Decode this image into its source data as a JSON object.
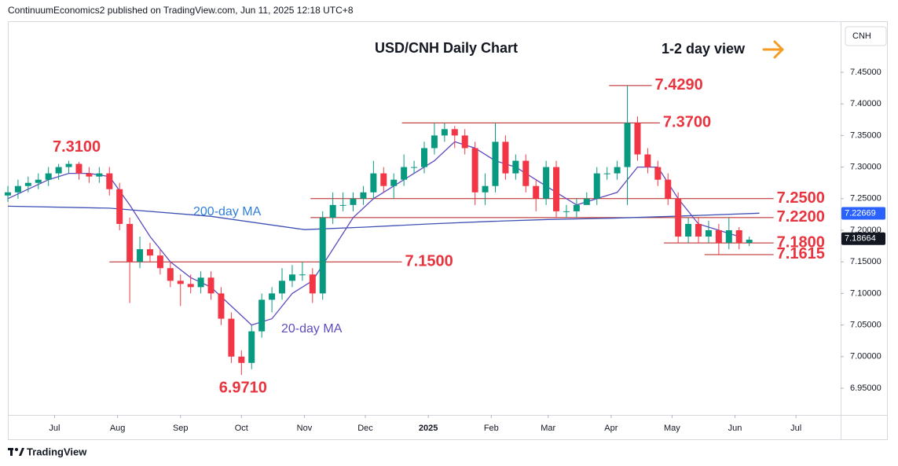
{
  "header": "ContinuumEconomics2 published on TradingView.com, Jun 11, 2025 12:18 UTC+8",
  "footer": "TradingView",
  "chart_data": {
    "type": "candlestick",
    "title": "USD/CNH Daily Chart",
    "subtitle": "1-2 day view",
    "axis_label": "CNH",
    "grid": false,
    "up_color": "#089981",
    "down_color": "#f23645",
    "xlim": [
      0,
      410
    ],
    "xticks": [
      {
        "value": 23,
        "label": "Jul"
      },
      {
        "value": 54,
        "label": "Aug"
      },
      {
        "value": 85,
        "label": "Sep"
      },
      {
        "value": 115,
        "label": "Oct"
      },
      {
        "value": 146,
        "label": "Nov"
      },
      {
        "value": 176,
        "label": "Dec"
      },
      {
        "value": 207,
        "label": "2025"
      },
      {
        "value": 238,
        "label": "Feb"
      },
      {
        "value": 266,
        "label": "Mar"
      },
      {
        "value": 297,
        "label": "Apr"
      },
      {
        "value": 327,
        "label": "May"
      },
      {
        "value": 358,
        "label": "Jun"
      },
      {
        "value": 388,
        "label": "Jul"
      }
    ],
    "ylim": [
      6.9077,
      7.5296
    ],
    "yticks": [
      {
        "value": 6.95,
        "label": "6.95000"
      },
      {
        "value": 7.0,
        "label": "7.00000"
      },
      {
        "value": 7.05,
        "label": "7.05000"
      },
      {
        "value": 7.1,
        "label": "7.10000"
      },
      {
        "value": 7.15,
        "label": "7.15000"
      },
      {
        "value": 7.2,
        "label": "7.20000"
      },
      {
        "value": 7.25,
        "label": "7.25000"
      },
      {
        "value": 7.3,
        "label": "7.30000"
      },
      {
        "value": 7.35,
        "label": "7.35000"
      },
      {
        "value": 7.4,
        "label": "7.40000"
      },
      {
        "value": 7.45,
        "label": "7.45000"
      }
    ],
    "x": [
      0,
      5,
      10,
      15,
      20,
      25,
      30,
      35,
      40,
      45,
      50,
      55,
      60,
      65,
      70,
      75,
      80,
      85,
      90,
      95,
      100,
      105,
      110,
      115,
      120,
      125,
      130,
      135,
      140,
      145,
      150,
      155,
      160,
      165,
      170,
      175,
      180,
      185,
      190,
      195,
      200,
      205,
      210,
      215,
      220,
      225,
      230,
      235,
      240,
      245,
      250,
      255,
      260,
      265,
      270,
      275,
      280,
      285,
      290,
      295,
      300,
      305,
      310,
      315,
      320,
      325,
      330,
      335,
      340,
      345,
      350,
      355,
      360,
      365
    ],
    "open": [
      7.255,
      7.26,
      7.27,
      7.275,
      7.28,
      7.29,
      7.3,
      7.305,
      7.29,
      7.285,
      7.29,
      7.265,
      7.21,
      7.15,
      7.17,
      7.16,
      7.14,
      7.12,
      7.115,
      7.11,
      7.125,
      7.1,
      7.06,
      7.0,
      6.99,
      7.04,
      7.09,
      7.1,
      7.12,
      7.13,
      7.13,
      7.1,
      7.22,
      7.24,
      7.24,
      7.25,
      7.26,
      7.29,
      7.27,
      7.28,
      7.3,
      7.3,
      7.33,
      7.35,
      7.36,
      7.35,
      7.33,
      7.26,
      7.27,
      7.34,
      7.29,
      7.31,
      7.27,
      7.25,
      7.3,
      7.23,
      7.23,
      7.24,
      7.25,
      7.29,
      7.29,
      7.3,
      7.37,
      7.32,
      7.3,
      7.28,
      7.25,
      7.19,
      7.21,
      7.19,
      7.2,
      7.18,
      7.2,
      7.18
    ],
    "high": [
      7.27,
      7.28,
      7.285,
      7.29,
      7.3,
      7.305,
      7.31,
      7.308,
      7.3,
      7.3,
      7.3,
      7.275,
      7.22,
      7.19,
      7.18,
      7.17,
      7.15,
      7.13,
      7.13,
      7.135,
      7.135,
      7.11,
      7.07,
      7.01,
      7.05,
      7.1,
      7.11,
      7.14,
      7.145,
      7.15,
      7.14,
      7.23,
      7.26,
      7.26,
      7.26,
      7.27,
      7.31,
      7.3,
      7.29,
      7.32,
      7.31,
      7.34,
      7.37,
      7.37,
      7.365,
      7.36,
      7.34,
      7.29,
      7.37,
      7.35,
      7.32,
      7.32,
      7.28,
      7.31,
      7.31,
      7.24,
      7.25,
      7.26,
      7.3,
      7.3,
      7.31,
      7.429,
      7.38,
      7.33,
      7.31,
      7.29,
      7.26,
      7.22,
      7.22,
      7.215,
      7.21,
      7.22,
      7.205,
      7.19
    ],
    "low": [
      7.245,
      7.25,
      7.26,
      7.265,
      7.27,
      7.28,
      7.29,
      7.28,
      7.275,
      7.275,
      7.255,
      7.2,
      7.085,
      7.14,
      7.15,
      7.13,
      7.11,
      7.08,
      7.1,
      7.1,
      7.09,
      7.05,
      6.99,
      6.971,
      6.98,
      7.03,
      7.07,
      7.09,
      7.11,
      7.12,
      7.085,
      7.09,
      7.21,
      7.23,
      7.23,
      7.24,
      7.25,
      7.26,
      7.25,
      7.27,
      7.29,
      7.29,
      7.32,
      7.34,
      7.33,
      7.32,
      7.24,
      7.24,
      7.26,
      7.28,
      7.28,
      7.26,
      7.23,
      7.24,
      7.22,
      7.22,
      7.22,
      7.24,
      7.24,
      7.28,
      7.28,
      7.24,
      7.31,
      7.29,
      7.27,
      7.24,
      7.18,
      7.18,
      7.18,
      7.18,
      7.1615,
      7.17,
      7.17,
      7.175
    ],
    "close": [
      7.26,
      7.27,
      7.275,
      7.28,
      7.29,
      7.3,
      7.305,
      7.29,
      7.285,
      7.29,
      7.265,
      7.21,
      7.15,
      7.17,
      7.16,
      7.14,
      7.12,
      7.115,
      7.11,
      7.125,
      7.1,
      7.06,
      7.0,
      6.99,
      7.04,
      7.09,
      7.1,
      7.12,
      7.13,
      7.13,
      7.1,
      7.22,
      7.24,
      7.24,
      7.25,
      7.26,
      7.29,
      7.27,
      7.28,
      7.3,
      7.3,
      7.33,
      7.35,
      7.36,
      7.35,
      7.33,
      7.26,
      7.27,
      7.34,
      7.29,
      7.31,
      7.27,
      7.25,
      7.3,
      7.23,
      7.23,
      7.24,
      7.25,
      7.29,
      7.29,
      7.3,
      7.37,
      7.32,
      7.3,
      7.28,
      7.25,
      7.19,
      7.21,
      7.19,
      7.2,
      7.18,
      7.2,
      7.18,
      7.185
    ],
    "series": [
      {
        "name": "200-day MA",
        "color": "#3f51b5",
        "x": [
          0,
          50,
          100,
          146,
          176,
          207,
          238,
          266,
          297,
          327,
          370
        ],
        "values": [
          7.238,
          7.235,
          7.222,
          7.201,
          7.205,
          7.21,
          7.214,
          7.217,
          7.219,
          7.222,
          7.227
        ]
      },
      {
        "name": "20-day MA",
        "color": "#5e4bbf",
        "x": [
          0,
          10,
          20,
          30,
          40,
          50,
          60,
          70,
          80,
          90,
          100,
          110,
          120,
          130,
          140,
          150,
          160,
          170,
          180,
          190,
          200,
          210,
          220,
          230,
          240,
          250,
          260,
          270,
          280,
          290,
          300,
          310,
          320,
          330,
          340,
          350,
          360
        ],
        "values": [
          7.25,
          7.265,
          7.28,
          7.29,
          7.29,
          7.285,
          7.24,
          7.19,
          7.15,
          7.125,
          7.11,
          7.08,
          7.05,
          7.06,
          7.1,
          7.12,
          7.17,
          7.22,
          7.25,
          7.27,
          7.29,
          7.31,
          7.34,
          7.33,
          7.31,
          7.3,
          7.28,
          7.26,
          7.24,
          7.25,
          7.26,
          7.3,
          7.3,
          7.25,
          7.21,
          7.2,
          7.19
        ]
      }
    ],
    "levels": [
      {
        "value": 7.429,
        "label": "7.4290",
        "from": 296,
        "to": 317
      },
      {
        "value": 7.37,
        "label": "7.3700",
        "from": 194,
        "to": 321
      },
      {
        "value": 7.31,
        "label": "7.3100"
      },
      {
        "value": 7.25,
        "label": "7.2500",
        "from": 149,
        "to": 377
      },
      {
        "value": 7.22,
        "label": "7.2200",
        "from": 149,
        "to": 377
      },
      {
        "value": 7.18,
        "label": "7.1800",
        "from": 323,
        "to": 377
      },
      {
        "value": 7.1615,
        "label": "7.1615",
        "from": 343,
        "to": 377
      },
      {
        "value": 7.15,
        "label": "7.1500",
        "from": 50,
        "to": 194
      },
      {
        "value": 6.971,
        "label": "6.9710"
      }
    ],
    "level_color": "#b71c1c",
    "level_label_color": "#e8343f",
    "price_tags": [
      {
        "value": 7.22669,
        "color": "#2962ff"
      },
      {
        "value": 7.18664,
        "color": "#131722"
      }
    ]
  }
}
